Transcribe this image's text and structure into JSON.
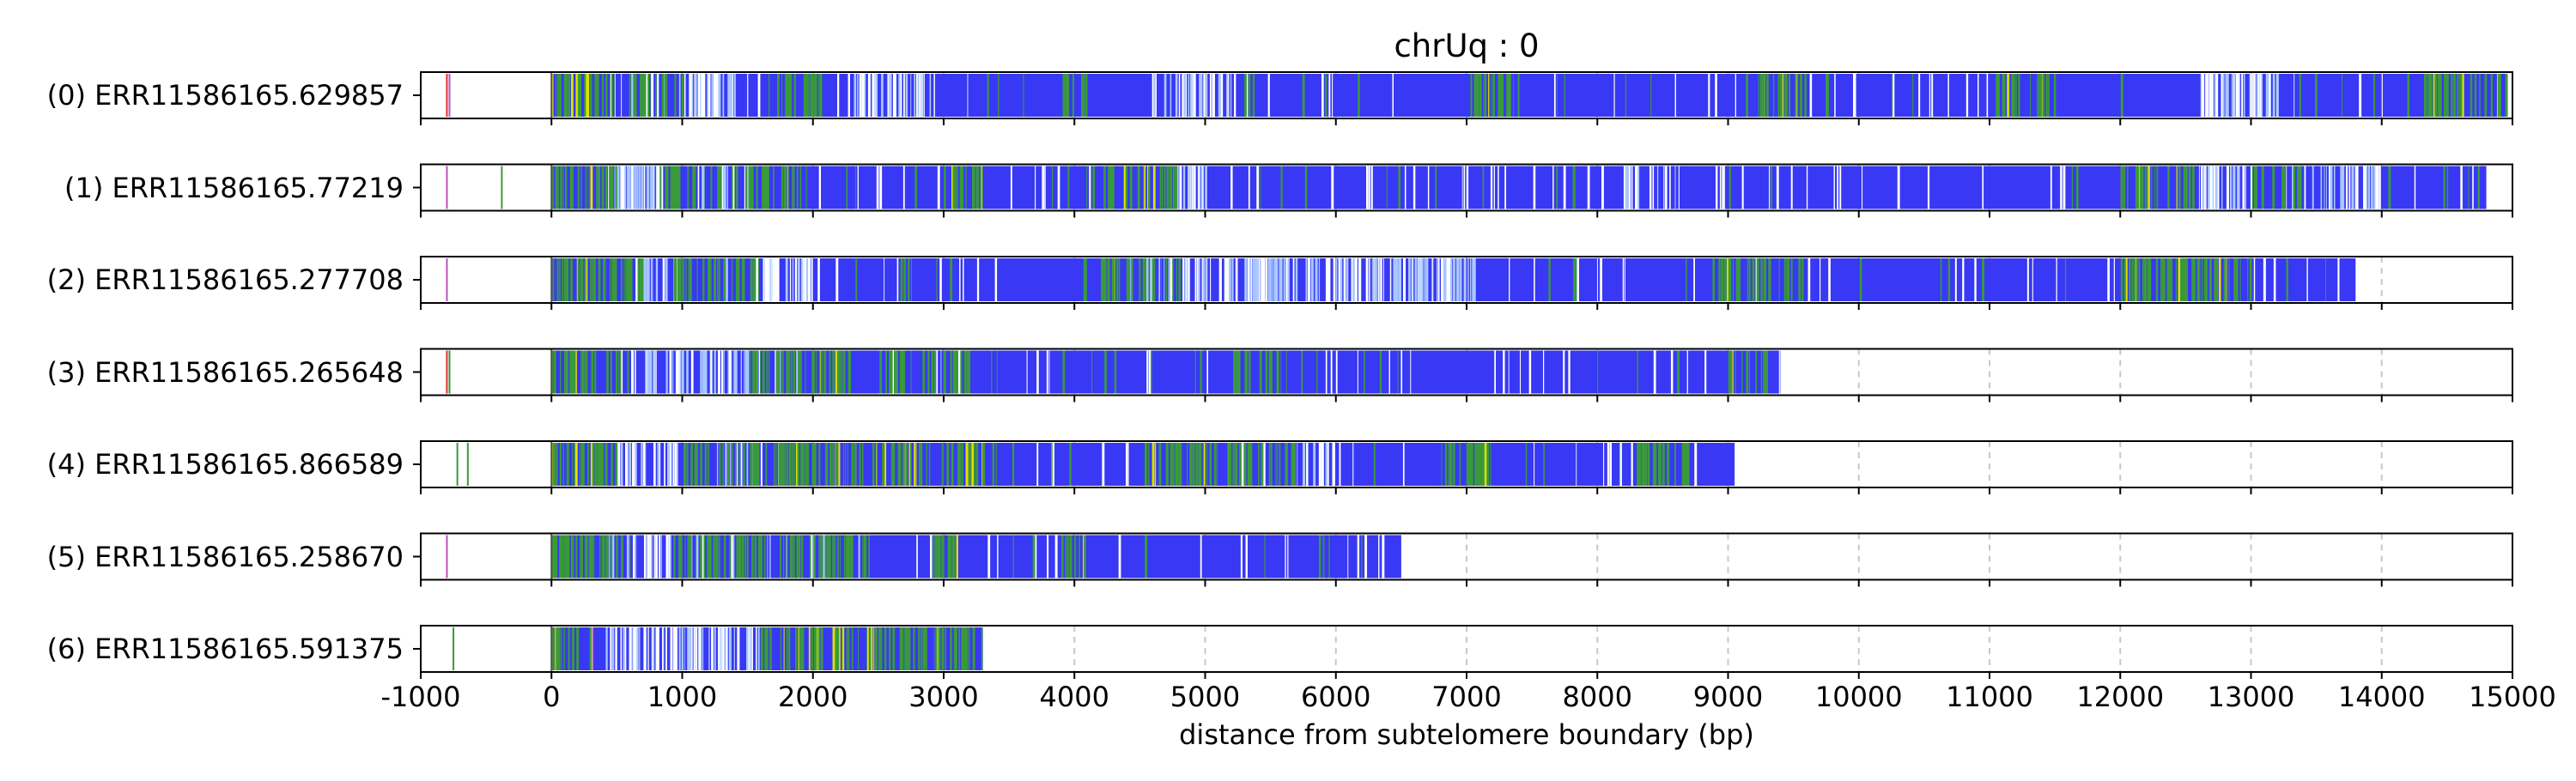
{
  "chart_data": {
    "type": "read-composition-tracks",
    "title": "chrUq : 0",
    "xlabel": "distance from subtelomere boundary (bp)",
    "ylabel": "",
    "xlim": [
      -1000,
      15000
    ],
    "x_ticks": [
      "-1000",
      "0",
      "1000",
      "2000",
      "3000",
      "4000",
      "5000",
      "6000",
      "7000",
      "8000",
      "9000",
      "10000",
      "11000",
      "12000",
      "13000",
      "14000",
      "15000"
    ],
    "x_tick_values": [
      -1000,
      0,
      1000,
      2000,
      3000,
      4000,
      5000,
      6000,
      7000,
      8000,
      9000,
      10000,
      11000,
      12000,
      13000,
      14000,
      15000
    ],
    "grid": "vertical dashed gridlines at x ticks",
    "colors": {
      "main": "#3838f5",
      "green": "#3a9a3a",
      "lightblue": "#a9c8ff",
      "magenta": "#c050c0",
      "lavender": "#c8a0ff",
      "yellow": "#e0e000",
      "red": "#e03030",
      "white": "#ffffff"
    },
    "reads": [
      {
        "label": "(0) ERR11586165.629857",
        "start": 0,
        "end": 14950,
        "pre_marks": [
          {
            "x": -800,
            "color": "red"
          },
          {
            "x": -780,
            "color": "magenta"
          }
        ],
        "green_zones": [
          [
            0,
            1000
          ],
          [
            1700,
            2100
          ],
          [
            3900,
            4100
          ],
          [
            7000,
            7400
          ],
          [
            9200,
            9600
          ],
          [
            11000,
            11500
          ],
          [
            14300,
            14950
          ]
        ],
        "light_zones": [
          [
            400,
            1400
          ],
          [
            2300,
            2900
          ],
          [
            4600,
            5200
          ],
          [
            12600,
            13200
          ]
        ]
      },
      {
        "label": "(1) ERR11586165.77219",
        "start": 0,
        "end": 14800,
        "pre_marks": [
          {
            "x": -800,
            "color": "magenta"
          },
          {
            "x": -380,
            "color": "green"
          }
        ],
        "green_zones": [
          [
            0,
            500
          ],
          [
            800,
            1900
          ],
          [
            3000,
            3300
          ],
          [
            4200,
            4800
          ],
          [
            12000,
            12600
          ],
          [
            13000,
            13400
          ]
        ],
        "light_zones": [
          [
            300,
            1800
          ],
          [
            4700,
            5000
          ],
          [
            8200,
            8600
          ],
          [
            12600,
            14000
          ]
        ]
      },
      {
        "label": "(2) ERR11586165.277708",
        "start": 0,
        "end": 13800,
        "pre_marks": [
          {
            "x": -800,
            "color": "magenta"
          }
        ],
        "green_zones": [
          [
            0,
            700
          ],
          [
            900,
            1600
          ],
          [
            4200,
            4800
          ],
          [
            8900,
            9500
          ],
          [
            12000,
            13000
          ]
        ],
        "light_zones": [
          [
            500,
            2200
          ],
          [
            4400,
            7100
          ],
          [
            9000,
            9500
          ]
        ]
      },
      {
        "label": "(3) ERR11586165.265648",
        "start": 0,
        "end": 9400,
        "pre_marks": [
          {
            "x": -800,
            "color": "red"
          },
          {
            "x": -780,
            "color": "green"
          }
        ],
        "green_zones": [
          [
            0,
            600
          ],
          [
            1500,
            2300
          ],
          [
            2500,
            3200
          ],
          [
            5200,
            5600
          ],
          [
            9000,
            9300
          ]
        ],
        "light_zones": [
          [
            500,
            1900
          ],
          [
            2600,
            3200
          ]
        ]
      },
      {
        "label": "(4) ERR11586165.866589",
        "start": 0,
        "end": 9050,
        "pre_marks": [
          {
            "x": -720,
            "color": "green"
          },
          {
            "x": -640,
            "color": "green"
          }
        ],
        "green_zones": [
          [
            0,
            500
          ],
          [
            1000,
            3400
          ],
          [
            4500,
            5700
          ],
          [
            6800,
            7200
          ],
          [
            8300,
            8700
          ]
        ],
        "light_zones": [
          [
            400,
            1800
          ],
          [
            5000,
            6000
          ]
        ]
      },
      {
        "label": "(5) ERR11586165.258670",
        "start": 0,
        "end": 6500,
        "pre_marks": [
          {
            "x": -800,
            "color": "magenta"
          }
        ],
        "green_zones": [
          [
            0,
            600
          ],
          [
            900,
            2400
          ],
          [
            2900,
            3100
          ],
          [
            3900,
            4100
          ]
        ],
        "light_zones": [
          [
            400,
            2400
          ]
        ]
      },
      {
        "label": "(6) ERR11586165.591375",
        "start": 0,
        "end": 3300,
        "pre_marks": [
          {
            "x": -750,
            "color": "green"
          }
        ],
        "green_zones": [
          [
            0,
            300
          ],
          [
            1600,
            3300
          ]
        ],
        "light_zones": [
          [
            400,
            1700
          ]
        ]
      }
    ]
  }
}
